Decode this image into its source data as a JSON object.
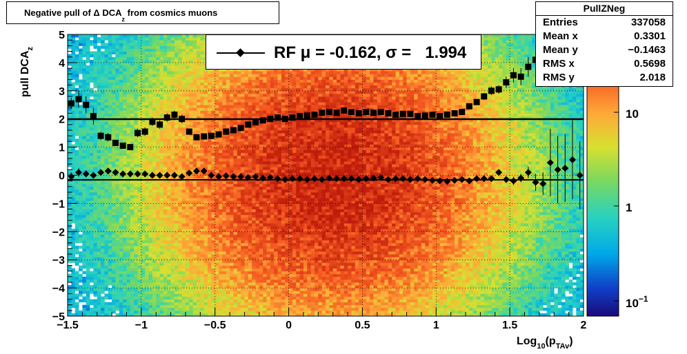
{
  "title": {
    "prefix": "Negative pull of ",
    "delta": "Δ",
    "quantity": " DCA",
    "subscript": "z",
    "suffix": " from cosmics muons"
  },
  "stats": {
    "name": "PullZNeg",
    "rows": [
      {
        "key": "Entries",
        "value": "337058"
      },
      {
        "key": "Mean x",
        "value": "0.3301"
      },
      {
        "key": "Mean y",
        "value": "−0.1463"
      },
      {
        "key": "RMS x",
        "value": "0.5698"
      },
      {
        "key": "RMS y",
        "value": "2.018"
      }
    ]
  },
  "legend": {
    "text": "RF μ = -0.162, σ =   1.994"
  },
  "axes": {
    "x": {
      "label_main": "Log",
      "label_sub1": "10",
      "label_mid": "(p",
      "label_sub2": "TAv",
      "label_end": ")",
      "ticks": [
        "−1.5",
        "−1",
        "−0.5",
        "0",
        "0.5",
        "1",
        "1.5",
        "2"
      ]
    },
    "y": {
      "label_main": "pull DCA",
      "label_sub": "z",
      "ticks": [
        "−5",
        "−4",
        "−3",
        "−2",
        "−1",
        "0",
        "1",
        "2",
        "3",
        "4",
        "5"
      ]
    },
    "z": {
      "ticks": [
        "10",
        "1"
      ],
      "bottom_tick_base": "10",
      "bottom_tick_exp": "−1"
    }
  },
  "colors": {
    "frame": "#000000",
    "markers": "#000000",
    "fit_line": "#000000"
  },
  "chart_data": {
    "type": "heatmap",
    "title": "Negative pull of Δ DCA_z from cosmics muons",
    "xlabel": "Log10(p_TAv)",
    "ylabel": "pull DCA_z",
    "xlim": [
      -1.5,
      2
    ],
    "ylim": [
      -5,
      5
    ],
    "zlim": [
      0.05,
      50
    ],
    "zscale": "log",
    "grid": true,
    "legend_position": "top-center",
    "hist2d_summary": {
      "entries": 337058,
      "mean_x": 0.3301,
      "mean_y": -0.1463,
      "rms_x": 0.5698,
      "rms_y": 2.018,
      "peak_x": 0.3,
      "peak_y": 0
    },
    "fit": {
      "mu": -0.162,
      "sigma": 1.994
    },
    "series": [
      {
        "marker": "square",
        "x": [
          -1.475,
          -1.425,
          -1.375,
          -1.325,
          -1.275,
          -1.225,
          -1.175,
          -1.125,
          -1.075,
          -1.025,
          -0.975,
          -0.925,
          -0.875,
          -0.825,
          -0.775,
          -0.725,
          -0.675,
          -0.625,
          -0.575,
          -0.525,
          -0.475,
          -0.425,
          -0.375,
          -0.325,
          -0.275,
          -0.225,
          -0.175,
          -0.125,
          -0.075,
          -0.025,
          0.025,
          0.075,
          0.125,
          0.175,
          0.225,
          0.275,
          0.325,
          0.375,
          0.425,
          0.475,
          0.525,
          0.575,
          0.625,
          0.675,
          0.725,
          0.775,
          0.825,
          0.875,
          0.925,
          0.975,
          1.025,
          1.075,
          1.125,
          1.175,
          1.225,
          1.275,
          1.325,
          1.375,
          1.425,
          1.475,
          1.525,
          1.575,
          1.625,
          1.675
        ],
        "y": [
          2.55,
          2.7,
          2.5,
          2.1,
          1.4,
          1.35,
          1.15,
          1.05,
          1.0,
          1.5,
          1.55,
          1.9,
          1.8,
          2.05,
          2.15,
          2.0,
          1.55,
          1.35,
          1.38,
          1.4,
          1.45,
          1.55,
          1.6,
          1.68,
          1.8,
          1.88,
          1.95,
          2.0,
          2.05,
          2.0,
          2.05,
          2.1,
          2.12,
          2.15,
          2.22,
          2.25,
          2.22,
          2.3,
          2.25,
          2.2,
          2.25,
          2.22,
          2.25,
          2.2,
          2.15,
          2.18,
          2.18,
          2.1,
          2.12,
          2.15,
          2.1,
          2.15,
          2.2,
          2.25,
          2.45,
          2.6,
          2.8,
          3.0,
          3.05,
          3.3,
          3.55,
          3.5,
          3.85,
          4.1
        ],
        "yerr": [
          0.2,
          0.3,
          0.3,
          0.3,
          0.15,
          0.15,
          0.1,
          0.1,
          0.1,
          0.15,
          0.15,
          0.15,
          0.15,
          0.15,
          0.15,
          0.15,
          0.1,
          0.08,
          0.06,
          0.05,
          0.05,
          0.04,
          0.04,
          0.03,
          0.03,
          0.03,
          0.03,
          0.03,
          0.03,
          0.03,
          0.03,
          0.03,
          0.03,
          0.03,
          0.03,
          0.03,
          0.03,
          0.03,
          0.03,
          0.03,
          0.03,
          0.03,
          0.03,
          0.03,
          0.03,
          0.03,
          0.03,
          0.03,
          0.04,
          0.04,
          0.04,
          0.05,
          0.05,
          0.06,
          0.08,
          0.1,
          0.12,
          0.15,
          0.15,
          0.2,
          0.25,
          0.3,
          0.35,
          0.4
        ]
      },
      {
        "marker": "diamond",
        "x": [
          -1.475,
          -1.425,
          -1.375,
          -1.325,
          -1.275,
          -1.225,
          -1.175,
          -1.125,
          -1.075,
          -1.025,
          -0.975,
          -0.925,
          -0.875,
          -0.825,
          -0.775,
          -0.725,
          -0.675,
          -0.625,
          -0.575,
          -0.525,
          -0.475,
          -0.425,
          -0.375,
          -0.325,
          -0.275,
          -0.225,
          -0.175,
          -0.125,
          -0.075,
          -0.025,
          0.025,
          0.075,
          0.125,
          0.175,
          0.225,
          0.275,
          0.325,
          0.375,
          0.425,
          0.475,
          0.525,
          0.575,
          0.625,
          0.675,
          0.725,
          0.775,
          0.825,
          0.875,
          0.925,
          0.975,
          1.025,
          1.075,
          1.125,
          1.175,
          1.225,
          1.275,
          1.325,
          1.375,
          1.425,
          1.475,
          1.525,
          1.575,
          1.625,
          1.675,
          1.725,
          1.775,
          1.825,
          1.875,
          1.925,
          1.975
        ],
        "y": [
          -0.05,
          0.1,
          0.05,
          0.0,
          0.1,
          0.15,
          0.1,
          0.05,
          0.05,
          0.05,
          0.05,
          0.0,
          0.0,
          0.0,
          0.0,
          -0.05,
          0.08,
          0.15,
          0.15,
          0.0,
          -0.05,
          -0.02,
          -0.05,
          -0.05,
          -0.08,
          -0.05,
          -0.1,
          -0.08,
          -0.12,
          -0.15,
          -0.12,
          -0.12,
          -0.15,
          -0.12,
          -0.15,
          -0.1,
          -0.12,
          -0.12,
          -0.12,
          -0.15,
          -0.12,
          -0.1,
          -0.08,
          -0.15,
          -0.12,
          -0.12,
          -0.15,
          -0.12,
          -0.15,
          -0.18,
          -0.2,
          -0.22,
          -0.18,
          -0.15,
          -0.2,
          -0.12,
          -0.12,
          -0.12,
          0.1,
          -0.15,
          -0.2,
          -0.1,
          0.1,
          -0.25,
          -0.3,
          0.45,
          0.2,
          0.25,
          0.55,
          0.0
        ],
        "yerr": [
          0.15,
          0.15,
          0.12,
          0.1,
          0.08,
          0.08,
          0.06,
          0.06,
          0.05,
          0.05,
          0.05,
          0.05,
          0.05,
          0.04,
          0.04,
          0.04,
          0.04,
          0.03,
          0.03,
          0.02,
          0.02,
          0.02,
          0.02,
          0.02,
          0.02,
          0.02,
          0.02,
          0.02,
          0.02,
          0.02,
          0.02,
          0.02,
          0.02,
          0.02,
          0.02,
          0.02,
          0.02,
          0.02,
          0.02,
          0.02,
          0.02,
          0.02,
          0.02,
          0.02,
          0.02,
          0.02,
          0.02,
          0.02,
          0.03,
          0.03,
          0.03,
          0.03,
          0.04,
          0.04,
          0.05,
          0.06,
          0.08,
          0.1,
          0.1,
          0.12,
          0.15,
          0.15,
          0.2,
          0.3,
          0.4,
          1.2,
          1.2,
          1.2,
          1.4,
          1.2
        ]
      }
    ]
  }
}
